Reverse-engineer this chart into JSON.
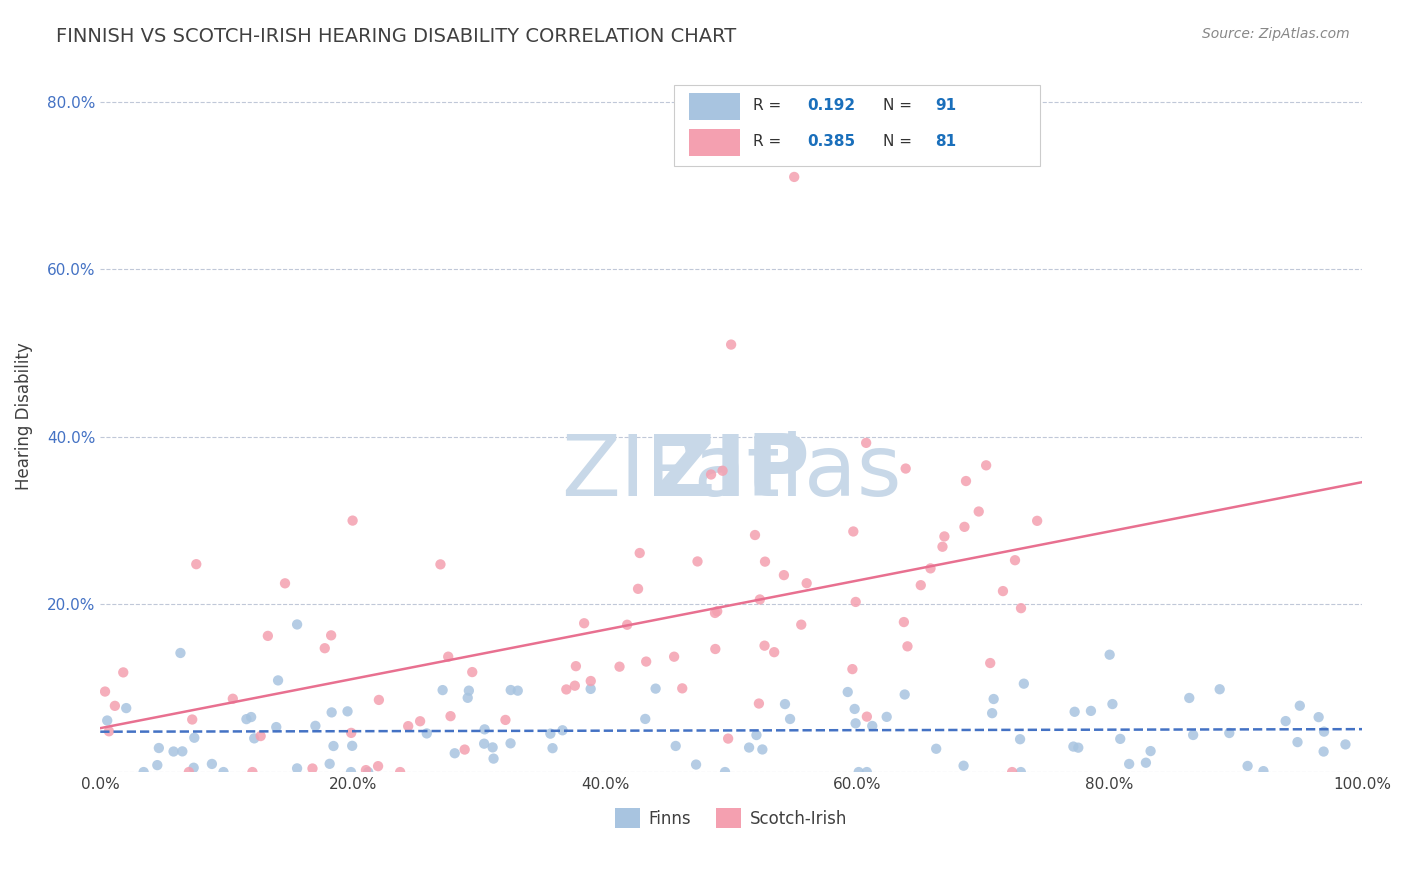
{
  "title": "FINNISH VS SCOTCH-IRISH HEARING DISABILITY CORRELATION CHART",
  "source": "Source: ZipAtlas.com",
  "xlabel_label": "",
  "ylabel_label": "Hearing Disability",
  "x_min": 0.0,
  "x_max": 1.0,
  "y_min": 0.0,
  "y_max": 0.85,
  "x_ticks": [
    0.0,
    0.2,
    0.4,
    0.6,
    0.8,
    1.0
  ],
  "x_tick_labels": [
    "0.0%",
    "20.0%",
    "40.0%",
    "60.0%",
    "80.0%",
    "100.0%"
  ],
  "y_ticks": [
    0.0,
    0.2,
    0.4,
    0.6,
    0.8
  ],
  "y_tick_labels": [
    "",
    "20.0%",
    "40.0%",
    "60.0%",
    "80.0%"
  ],
  "finns_R": 0.192,
  "finns_N": 91,
  "scotch_R": 0.385,
  "scotch_N": 81,
  "finns_color": "#a8c4e0",
  "scotch_color": "#f4a0b0",
  "finns_line_color": "#4472c4",
  "scotch_line_color": "#e87090",
  "watermark": "ZIPatlas",
  "watermark_color": "#c8d8e8",
  "legend_r_color": "#1a6fbb",
  "legend_n_color": "#1a6fbb",
  "background_color": "#ffffff",
  "grid_color": "#c0c8d8",
  "title_color": "#404040",
  "ylabel_color": "#404040"
}
